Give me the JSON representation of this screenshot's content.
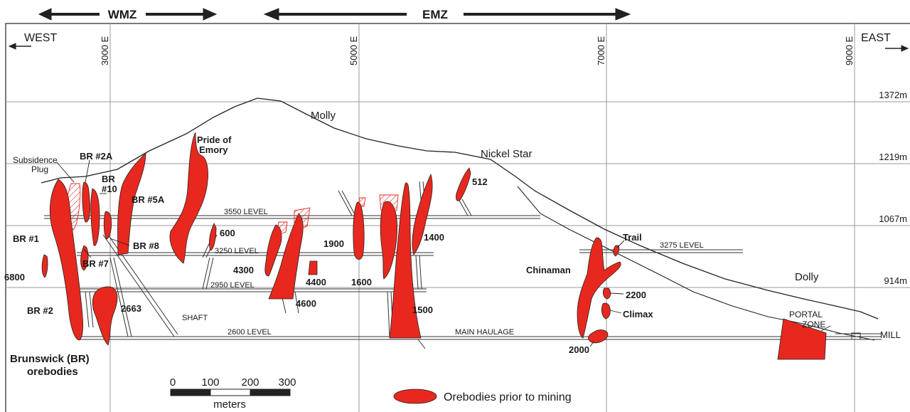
{
  "zones": {
    "wmz": "WMZ",
    "emz": "EMZ"
  },
  "directions": {
    "west": "WEST",
    "east": "EAST"
  },
  "eastings": [
    "3000 E",
    "5000 E",
    "7000 E",
    "9000 E"
  ],
  "elevations": [
    "1372m",
    "1219m",
    "1067m",
    "914m"
  ],
  "levels": {
    "l3550": "3550 LEVEL",
    "l3250": "3250 LEVEL",
    "l2950": "2950 LEVEL",
    "l2600": "2600 LEVEL",
    "l3275": "3275 LEVEL",
    "haulage": "MAIN HAULAGE",
    "shaft": "SHAFT"
  },
  "places": {
    "molly": "Molly",
    "nickel_star": "Nickel Star",
    "dolly": "Dolly",
    "portal1": "PORTAL",
    "portal2": "ZONE",
    "mill": "MILL",
    "subsidence1": "Subsidence",
    "subsidence2": "Plug"
  },
  "orebodies": {
    "br2a": "BR #2A",
    "br10a": "BR",
    "br10b": "#10",
    "br5a": "BR #5A",
    "pride1": "Pride of",
    "pride2": "Emory",
    "br1": "BR #1",
    "br8": "BR #8",
    "br7": "BR #7",
    "o6800": "6800",
    "br2": "BR #2",
    "o2663": "2663",
    "o600": "600",
    "o4300": "4300",
    "o4400": "4400",
    "o4600": "4600",
    "o1900": "1900",
    "o1600": "1600",
    "o1400": "1400",
    "o1500": "1500",
    "o512": "512",
    "chinaman": "Chinaman",
    "trail": "Trail",
    "o2200": "2200",
    "climax": "Climax",
    "o2000": "2000",
    "brunswick1": "Brunswick (BR)",
    "brunswick2": "orebodies"
  },
  "scale": {
    "ticks": [
      "0",
      "100",
      "200",
      "300"
    ],
    "unit": "meters"
  },
  "legend": {
    "label": "Orebodies prior to mining"
  },
  "colors": {
    "ore": "#e8281e",
    "outline": "#222222",
    "grid": "#9a9a9a"
  }
}
